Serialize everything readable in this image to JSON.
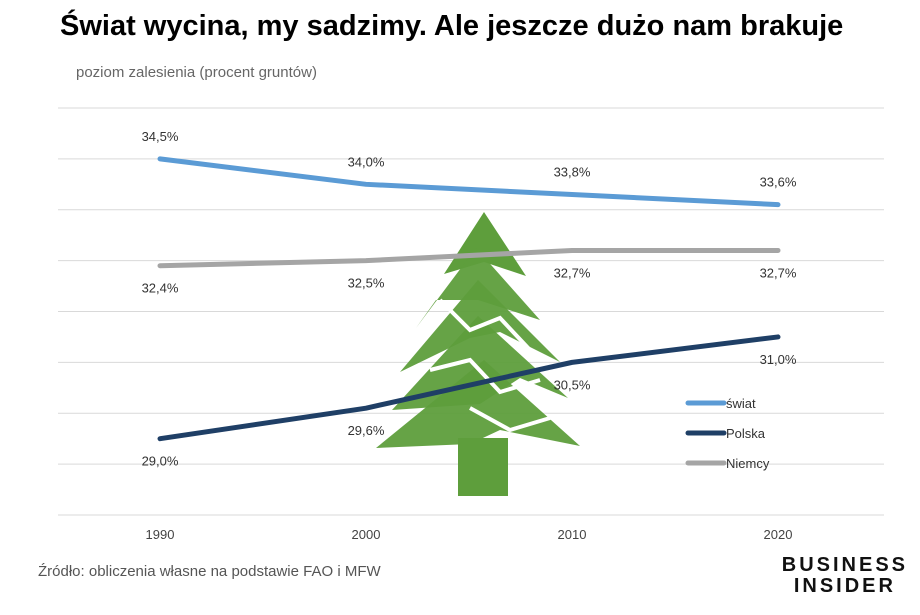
{
  "title": "Świat wycina, my sadzimy. Ale jeszcze dużo nam brakuje",
  "source": "Źródło: obliczenia własne na podstawie FAO i MFW",
  "brand": {
    "line1": "BUSINESS",
    "line2": "INSIDER"
  },
  "chart_data": {
    "type": "line",
    "ylabel": "poziom zalesienia (procent gruntów)",
    "x": [
      "1990",
      "2000",
      "2010",
      "2020"
    ],
    "ylim": [
      27.5,
      35.5
    ],
    "grid": true,
    "legend_position": "bottom-right",
    "series": [
      {
        "name": "świat",
        "color": "#5b9bd5",
        "values": [
          34.5,
          34.0,
          33.8,
          33.6
        ],
        "labels": [
          "34,5%",
          "34,0%",
          "33,8%",
          "33,6%"
        ],
        "label_side": "above"
      },
      {
        "name": "Polska",
        "color": "#1f3f66",
        "values": [
          29.0,
          29.6,
          30.5,
          31.0
        ],
        "labels": [
          "29,0%",
          "29,6%",
          "30,5%",
          "31,0%"
        ],
        "label_side": "below"
      },
      {
        "name": "Niemcy",
        "color": "#a5a5a5",
        "values": [
          32.4,
          32.5,
          32.7,
          32.7
        ],
        "labels": [
          "32,4%",
          "32,5%",
          "32,7%",
          "32,7%"
        ],
        "label_side": "below"
      }
    ]
  },
  "decoration": {
    "icon": "christmas-tree-icon",
    "color": "#5e9e3c"
  }
}
